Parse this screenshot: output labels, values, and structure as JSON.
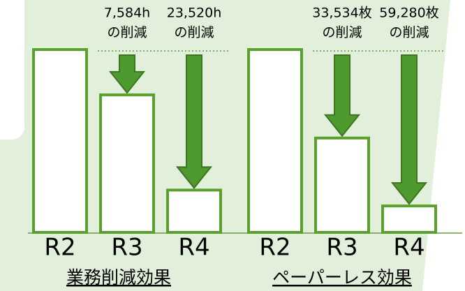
{
  "chart_data": [
    {
      "type": "bar",
      "title": "業務削減効果",
      "categories": [
        "R2",
        "R3",
        "R4"
      ],
      "values": [
        30600,
        23016,
        7080
      ],
      "color": "#5aa02c",
      "annotations": [
        {
          "category": "R3",
          "label": "7,584h",
          "value": 7584,
          "note": "の削減"
        },
        {
          "category": "R4",
          "label": "23,520h",
          "value": 23520,
          "note": "の削減"
        }
      ]
    },
    {
      "type": "bar",
      "title": "ペーパーレス効果",
      "categories": [
        "R2",
        "R3",
        "R4"
      ],
      "values": [
        69300,
        35766,
        10020
      ],
      "color": "#5aa02c",
      "annotations": [
        {
          "category": "R3",
          "label": "33,534枚",
          "value": 33534,
          "note": "の削減"
        },
        {
          "category": "R4",
          "label": "59,280枚",
          "value": 59280,
          "note": "の削減"
        }
      ]
    }
  ]
}
